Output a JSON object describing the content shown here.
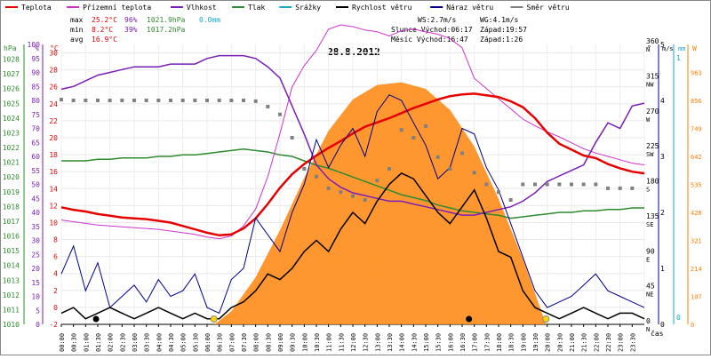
{
  "chart_data": {
    "type": "line",
    "title": "28.8.2012",
    "legend": [
      {
        "name": "Teplota",
        "color": "#e60000"
      },
      {
        "name": "Přízemní teplota",
        "color": "#cc33cc"
      },
      {
        "name": "Vlhkost",
        "color": "#7a1fb3"
      },
      {
        "name": "Tlak",
        "color": "#2e8b2e"
      },
      {
        "name": "Srážky",
        "color": "#1aa7c9"
      },
      {
        "name": "Rychlost větru",
        "color": "#000000"
      },
      {
        "name": "Náraz větru",
        "color": "#00008b"
      },
      {
        "name": "Směr větru",
        "color": "#808080"
      }
    ],
    "stats": {
      "max_label": "max",
      "min_label": "min",
      "avg_label": "avg",
      "max_temp": "25.2°C",
      "max_hum": "96%",
      "max_press": "1021.9hPa",
      "max_rain": "0.0mm",
      "min_temp": "8.2°C",
      "min_hum": "39%",
      "min_press": "1017.2hPa",
      "avg_temp": "16.9°C"
    },
    "info": {
      "ws": "WS:2.7m/s",
      "wg": "WG:4.1m/s",
      "sun": "Slunce Východ:06:17",
      "sun_set": "Západ:19:57",
      "moon": "Měsíc Východ:16:47",
      "moon_set": "Západ:1:26"
    },
    "axis_units": {
      "hpa": "hPa",
      "pct": "%",
      "degc": "°C",
      "deg": "°",
      "ms": "m/s",
      "mm": "mm",
      "w": "W",
      "time": "čas"
    },
    "axes": {
      "pressure_ticks": [
        "1010",
        "1011",
        "1012",
        "1013",
        "1014",
        "1015",
        "1016",
        "1017",
        "1018",
        "1019",
        "1020",
        "1021",
        "1022",
        "1023",
        "1024",
        "1025",
        "1026",
        "1027",
        "1028"
      ],
      "humidity_ticks": [
        "0",
        "5",
        "10",
        "15",
        "20",
        "25",
        "30",
        "35",
        "40",
        "45",
        "50",
        "55",
        "60",
        "65",
        "70",
        "75",
        "80",
        "85",
        "90",
        "95",
        "100"
      ],
      "temp_ticks": [
        "-2",
        "0",
        "2",
        "4",
        "6",
        "8",
        "10",
        "12",
        "14",
        "16",
        "18",
        "20",
        "22",
        "24",
        "26",
        "28",
        "30"
      ],
      "dir_ticks": [
        "0",
        "45",
        "90",
        "135",
        "180",
        "225",
        "270",
        "315",
        "360"
      ],
      "dir_names": [
        "N",
        "NE",
        "E",
        "SE",
        "S",
        "SW",
        "W",
        "NW",
        "N"
      ],
      "wind_ticks": [
        "0",
        "1",
        "2",
        "3",
        "4",
        "5"
      ],
      "rain_ticks": [
        "0",
        "1"
      ],
      "solar_ticks": [
        "0",
        "107",
        "214",
        "321",
        "428",
        "535",
        "642",
        "749",
        "856",
        "963"
      ],
      "time_ticks": [
        "00:00",
        "00:30",
        "01:00",
        "01:30",
        "02:00",
        "02:30",
        "03:00",
        "03:30",
        "04:00",
        "04:30",
        "05:00",
        "05:30",
        "06:00",
        "06:30",
        "07:00",
        "07:30",
        "08:00",
        "08:30",
        "09:00",
        "09:30",
        "10:00",
        "10:30",
        "11:00",
        "11:30",
        "12:00",
        "12:30",
        "13:00",
        "13:30",
        "14:00",
        "14:30",
        "15:00",
        "15:30",
        "16:00",
        "16:30",
        "17:00",
        "17:30",
        "18:00",
        "18:30",
        "19:00",
        "19:30",
        "20:00",
        "20:30",
        "21:00",
        "21:30",
        "22:00",
        "22:30",
        "23:00",
        "23:30"
      ]
    },
    "ranges": {
      "temp": [
        -2,
        31
      ],
      "humidity": [
        0,
        100
      ],
      "pressure": [
        1010,
        1029
      ],
      "wind": [
        0,
        5
      ],
      "direction": [
        0,
        360
      ],
      "solar": [
        0,
        1070
      ],
      "hours": [
        0,
        24
      ]
    },
    "series": {
      "temperature": {
        "x": [
          0,
          0.5,
          1,
          1.5,
          2,
          2.5,
          3,
          3.5,
          4,
          4.5,
          5,
          5.5,
          6,
          6.5,
          7,
          7.5,
          8,
          8.5,
          9,
          9.5,
          10,
          10.5,
          11,
          11.5,
          12,
          12.5,
          13,
          13.5,
          14,
          14.5,
          15,
          15.5,
          16,
          16.5,
          17,
          17.5,
          18,
          18.5,
          19,
          19.5,
          20,
          20.5,
          21,
          21.5,
          22,
          22.5,
          23,
          23.5,
          24
        ],
        "y": [
          11.8,
          11.5,
          11.3,
          11.0,
          10.8,
          10.6,
          10.5,
          10.4,
          10.2,
          10.0,
          9.6,
          9.2,
          8.8,
          8.5,
          8.6,
          9.3,
          10.5,
          12.2,
          14.1,
          15.7,
          16.9,
          17.9,
          18.8,
          19.6,
          20.5,
          21.3,
          21.8,
          22.3,
          22.9,
          23.5,
          24.0,
          24.5,
          24.9,
          25.1,
          25.2,
          25.0,
          24.8,
          24.3,
          23.6,
          22.3,
          20.6,
          19.3,
          18.6,
          17.9,
          17.6,
          16.9,
          16.4,
          16.0,
          15.8
        ]
      },
      "ground_temperature": {
        "x": [
          0,
          0.5,
          1,
          1.5,
          2,
          2.5,
          3,
          3.5,
          4,
          4.5,
          5,
          5.5,
          6,
          6.5,
          7,
          7.5,
          8,
          8.5,
          9,
          9.5,
          10,
          10.5,
          11,
          11.5,
          12,
          12.5,
          13,
          13.5,
          14,
          14.5,
          15,
          15.5,
          16,
          16.5,
          17,
          17.5,
          18,
          18.5,
          19,
          19.5,
          20,
          20.5,
          21,
          21.5,
          22,
          22.5,
          23,
          23.5,
          24
        ],
        "y": [
          10.3,
          10.1,
          9.9,
          9.7,
          9.6,
          9.5,
          9.4,
          9.3,
          9.2,
          9.0,
          8.8,
          8.6,
          8.3,
          8.1,
          8.4,
          9.6,
          11.6,
          15.4,
          20.5,
          26.0,
          28.5,
          30.3,
          32.8,
          33.3,
          33.1,
          32.7,
          32.5,
          32.0,
          32.6,
          32.8,
          32.5,
          32.2,
          31.7,
          30.6,
          27.0,
          25.8,
          24.6,
          23.4,
          22.2,
          21.4,
          20.7,
          20.1,
          19.4,
          18.7,
          18.2,
          17.8,
          17.4,
          17.0,
          16.8
        ]
      },
      "humidity": {
        "x": [
          0,
          0.5,
          1,
          1.5,
          2,
          2.5,
          3,
          3.5,
          4,
          4.5,
          5,
          5.5,
          6,
          6.5,
          7,
          7.5,
          8,
          8.5,
          9,
          9.5,
          10,
          10.5,
          11,
          11.5,
          12,
          12.5,
          13,
          13.5,
          14,
          14.5,
          15,
          15.5,
          16,
          16.5,
          17,
          17.5,
          18,
          18.5,
          19,
          19.5,
          20,
          20.5,
          21,
          21.5,
          22,
          22.5,
          23,
          23.5,
          24
        ],
        "y": [
          84,
          85,
          87,
          89,
          90,
          91,
          92,
          92,
          92,
          93,
          93,
          93,
          95,
          96,
          96,
          96,
          95,
          92,
          88,
          78,
          68,
          57,
          52,
          49,
          47,
          46,
          45,
          44,
          44,
          43,
          42,
          41,
          40,
          39,
          39,
          40,
          41,
          42,
          44,
          47,
          51,
          53,
          55,
          57,
          65,
          72,
          70,
          78,
          79
        ]
      },
      "pressure": {
        "x": [
          0,
          0.5,
          1,
          1.5,
          2,
          2.5,
          3,
          3.5,
          4,
          4.5,
          5,
          5.5,
          6,
          6.5,
          7,
          7.5,
          8,
          8.5,
          9,
          9.5,
          10,
          10.5,
          11,
          11.5,
          12,
          12.5,
          13,
          13.5,
          14,
          14.5,
          15,
          15.5,
          16,
          16.5,
          17,
          17.5,
          18,
          18.5,
          19,
          19.5,
          20,
          20.5,
          21,
          21.5,
          22,
          22.5,
          23,
          23.5,
          24
        ],
        "y": [
          1021.1,
          1021.1,
          1021.1,
          1021.2,
          1021.2,
          1021.3,
          1021.3,
          1021.3,
          1021.4,
          1021.4,
          1021.5,
          1021.5,
          1021.6,
          1021.7,
          1021.8,
          1021.9,
          1021.8,
          1021.7,
          1021.5,
          1021.4,
          1021.1,
          1020.8,
          1020.6,
          1020.3,
          1020.0,
          1019.7,
          1019.4,
          1019.1,
          1018.8,
          1018.6,
          1018.4,
          1018.1,
          1017.9,
          1017.7,
          1017.6,
          1017.5,
          1017.4,
          1017.2,
          1017.3,
          1017.4,
          1017.5,
          1017.6,
          1017.6,
          1017.7,
          1017.7,
          1017.8,
          1017.8,
          1017.9,
          1017.9
        ]
      },
      "wind_direction": {
        "x": [
          0,
          0.5,
          1,
          1.5,
          2,
          2.5,
          3,
          3.5,
          4,
          4.5,
          5,
          5.5,
          6,
          6.5,
          7,
          7.5,
          8,
          8.5,
          9,
          9.5,
          10,
          10.5,
          11,
          11.5,
          12,
          12.5,
          13,
          13.5,
          14,
          14.5,
          15,
          15.5,
          16,
          16.5,
          17,
          17.5,
          18,
          18.5,
          19,
          19.5,
          20,
          20.5,
          21,
          21.5,
          22,
          22.5,
          23,
          23.5
        ],
        "y": [
          289,
          288,
          288,
          288,
          288,
          288,
          288,
          288,
          288,
          288,
          288,
          288,
          288,
          288,
          288,
          288,
          287,
          280,
          270,
          240,
          200,
          190,
          175,
          170,
          165,
          160,
          185,
          200,
          250,
          240,
          255,
          215,
          200,
          220,
          195,
          180,
          170,
          160,
          180,
          180,
          180,
          180,
          180,
          180,
          180,
          175,
          175,
          175
        ]
      },
      "wind_speed": {
        "x": [
          0,
          0.5,
          1,
          1.5,
          2,
          2.5,
          3,
          3.5,
          4,
          4.5,
          5,
          5.5,
          6,
          6.5,
          7,
          7.5,
          8,
          8.5,
          9,
          9.5,
          10,
          10.5,
          11,
          11.5,
          12,
          12.5,
          13,
          13.5,
          14,
          14.5,
          15,
          15.5,
          16,
          16.5,
          17,
          17.5,
          18,
          18.5,
          19,
          19.5,
          20,
          20.5,
          21,
          21.5,
          22,
          22.5,
          23,
          23.5,
          24
        ],
        "y": [
          0.2,
          0.3,
          0.1,
          0.2,
          0.3,
          0.2,
          0.1,
          0.2,
          0.3,
          0.2,
          0.1,
          0.2,
          0.1,
          0.1,
          0.3,
          0.4,
          0.6,
          0.9,
          0.8,
          1.0,
          1.3,
          1.5,
          1.3,
          1.7,
          2.0,
          1.8,
          2.2,
          2.5,
          2.7,
          2.6,
          2.3,
          2.0,
          1.8,
          2.1,
          2.4,
          1.9,
          1.3,
          1.2,
          0.6,
          0.3,
          0.2,
          0.1,
          0.2,
          0.3,
          0.2,
          0.1,
          0.2,
          0.2,
          0.1
        ]
      },
      "wind_gust": {
        "x": [
          0,
          0.5,
          1,
          1.5,
          2,
          2.5,
          3,
          3.5,
          4,
          4.5,
          5,
          5.5,
          6,
          6.5,
          7,
          7.5,
          8,
          8.5,
          9,
          9.5,
          10,
          10.5,
          11,
          11.5,
          12,
          12.5,
          13,
          13.5,
          14,
          14.5,
          15,
          15.5,
          16,
          16.5,
          17,
          17.5,
          18,
          18.5,
          19,
          19.5,
          20,
          20.5,
          21,
          21.5,
          22,
          22.5,
          23,
          23.5,
          24
        ],
        "y": [
          0.9,
          1.4,
          0.6,
          1.1,
          0.3,
          0.5,
          0.7,
          0.4,
          0.8,
          0.5,
          0.6,
          0.9,
          0.3,
          0.2,
          0.8,
          1.0,
          1.9,
          1.6,
          1.3,
          2.0,
          2.5,
          3.3,
          2.8,
          3.2,
          3.5,
          3.0,
          3.8,
          4.1,
          4.0,
          3.6,
          3.2,
          2.6,
          2.8,
          3.5,
          3.4,
          2.8,
          2.4,
          1.8,
          1.2,
          0.6,
          0.3,
          0.4,
          0.5,
          0.7,
          0.9,
          0.6,
          0.5,
          0.4,
          0.3
        ]
      },
      "solar": {
        "x": [
          6.3,
          7,
          8,
          9,
          10,
          11,
          12,
          13,
          14,
          15,
          16,
          17,
          18,
          19,
          19.95
        ],
        "y": [
          0,
          50,
          180,
          360,
          560,
          740,
          860,
          915,
          925,
          900,
          820,
          680,
          480,
          250,
          0
        ]
      }
    }
  }
}
